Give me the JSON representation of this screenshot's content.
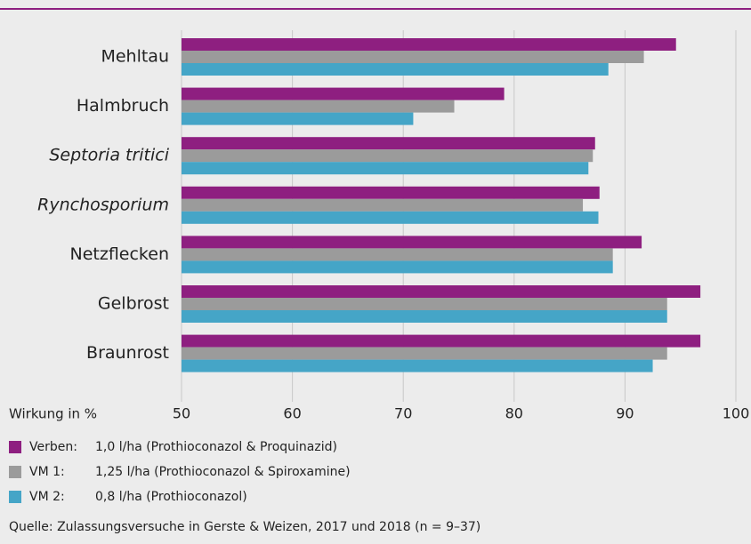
{
  "chart_data": {
    "type": "hbar",
    "categories": [
      "Mehltau",
      "Halmbruch",
      "Septoria tritici",
      "Rynchosporium",
      "Netzflecken",
      "Gelbrost",
      "Braunrost"
    ],
    "category_styles": [
      "normal",
      "normal",
      "italic",
      "italic",
      "normal",
      "normal",
      "normal"
    ],
    "series": [
      {
        "name": "Verben:",
        "description": "1,0 l/ha (Prothioconazol & Proquinazid)",
        "color": "#8e1f80",
        "values": [
          94.6,
          79.1,
          87.3,
          87.7,
          91.5,
          96.8,
          96.8
        ]
      },
      {
        "name": "VM 1:",
        "description": "1,25 l/ha (Prothioconazol & Spiroxamine)",
        "color": "#9b9b9b",
        "values": [
          91.7,
          74.6,
          87.1,
          86.2,
          88.9,
          93.8,
          93.8
        ]
      },
      {
        "name": "VM 2:",
        "description": "0,8 l/ha (Prothioconazol)",
        "color": "#45a5c7",
        "values": [
          88.5,
          70.9,
          86.7,
          87.6,
          88.9,
          93.8,
          92.5
        ]
      }
    ],
    "xlabel": "Wirkung in %",
    "xlim": [
      50,
      100
    ],
    "xticks": [
      50,
      60,
      70,
      80,
      90,
      100
    ],
    "grid": true,
    "source": "Quelle: Zulassungsversuche in Gerste & Weizen, 2017 und 2018 (n = 9–37)"
  }
}
